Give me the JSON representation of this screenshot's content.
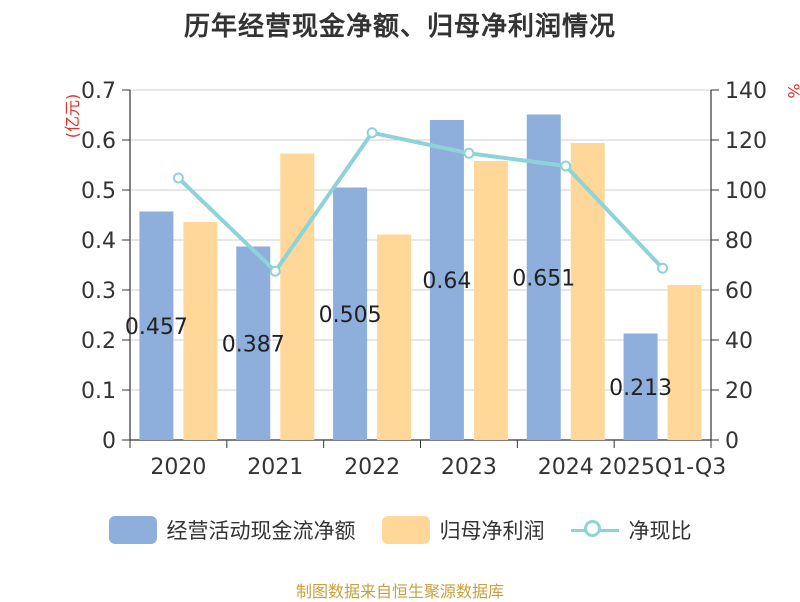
{
  "chart_data": {
    "type": "bar",
    "title": "历年经营现金净额、归母净利润情况",
    "categories": [
      "2020",
      "2021",
      "2022",
      "2023",
      "2024",
      "2025Q1-Q3"
    ],
    "y_left_unit": "(亿元)",
    "y_right_unit": "%",
    "y_left_range": [
      0,
      0.7
    ],
    "y_left_ticks": [
      "0",
      "0.1",
      "0.2",
      "0.3",
      "0.4",
      "0.5",
      "0.6",
      "0.7"
    ],
    "y_right_range": [
      0,
      140
    ],
    "y_right_ticks": [
      "0",
      "20",
      "40",
      "60",
      "80",
      "100",
      "120",
      "140"
    ],
    "grid": true,
    "legend_position": "bottom",
    "series": [
      {
        "name": "经营活动现金流净额",
        "kind": "bar",
        "axis": "left",
        "color": "#8eaedc",
        "values": [
          0.457,
          0.387,
          0.505,
          0.64,
          0.651,
          0.213
        ],
        "labels": [
          "0.457",
          "0.387",
          "0.505",
          "0.64",
          "0.651",
          "0.213"
        ]
      },
      {
        "name": "归母净利润",
        "kind": "bar",
        "axis": "left",
        "color": "#ffd899",
        "values": [
          0.436,
          0.573,
          0.411,
          0.558,
          0.594,
          0.31
        ]
      },
      {
        "name": "净现比",
        "kind": "line",
        "axis": "right",
        "color": "#8dd3d8",
        "values": [
          104.8,
          67.5,
          122.9,
          114.7,
          109.6,
          68.7
        ]
      }
    ]
  },
  "source": "制图数据来自恒生聚源数据库"
}
